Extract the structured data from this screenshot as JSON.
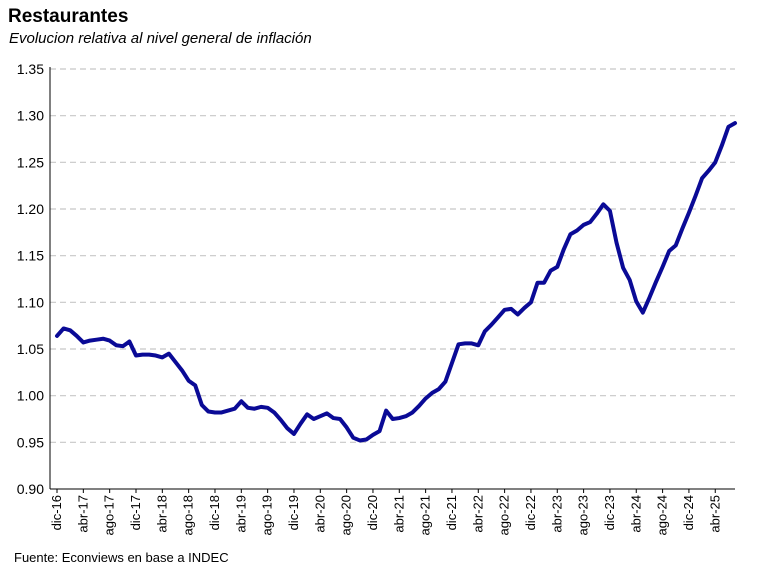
{
  "chart_data": {
    "type": "line",
    "title": "Restaurantes",
    "subtitle": "Evolucion relativa al nivel general de inflación",
    "source": "Fuente: Econviews en base a INDEC",
    "ylim": [
      0.9,
      1.35
    ],
    "yticks": [
      "0.90",
      "0.95",
      "1.00",
      "1.05",
      "1.10",
      "1.15",
      "1.20",
      "1.25",
      "1.30",
      "1.35"
    ],
    "ytick_values": [
      0.9,
      0.95,
      1.0,
      1.05,
      1.1,
      1.15,
      1.2,
      1.25,
      1.3,
      1.35
    ],
    "x_tick_labels": [
      "dic-16",
      "abr-17",
      "ago-17",
      "dic-17",
      "abr-18",
      "ago-18",
      "dic-18",
      "abr-19",
      "ago-19",
      "dic-19",
      "abr-20",
      "ago-20",
      "dic-20",
      "abr-21",
      "ago-21",
      "dic-21",
      "abr-22",
      "ago-22",
      "dic-22",
      "abr-23",
      "ago-23",
      "dic-23",
      "abr-24",
      "ago-24",
      "dic-24",
      "abr-25"
    ],
    "x_start": "dic-16",
    "x_end": "jul-25",
    "grid": true,
    "color": "#0a0a96",
    "series": [
      {
        "values": [
          1.064,
          1.072,
          1.07,
          1.064,
          1.057,
          1.059,
          1.06,
          1.061,
          1.059,
          1.054,
          1.053,
          1.058,
          1.043,
          1.044,
          1.044,
          1.043,
          1.041,
          1.045,
          1.036,
          1.027,
          1.016,
          1.011,
          0.99,
          0.983,
          0.982,
          0.982,
          0.984,
          0.986,
          0.994,
          0.987,
          0.986,
          0.988,
          0.987,
          0.982,
          0.974,
          0.965,
          0.959,
          0.97,
          0.98,
          0.975,
          0.978,
          0.981,
          0.976,
          0.975,
          0.966,
          0.955,
          0.952,
          0.953,
          0.958,
          0.962,
          0.984,
          0.975,
          0.976,
          0.978,
          0.982,
          0.989,
          0.997,
          1.003,
          1.007,
          1.015,
          1.035,
          1.055,
          1.056,
          1.056,
          1.054,
          1.069,
          1.076,
          1.084,
          1.092,
          1.093,
          1.087,
          1.094,
          1.1,
          1.121,
          1.121,
          1.134,
          1.138,
          1.157,
          1.173,
          1.177,
          1.183,
          1.186,
          1.195,
          1.205,
          1.198,
          1.164,
          1.137,
          1.124,
          1.101,
          1.089,
          1.105,
          1.122,
          1.138,
          1.155,
          1.161,
          1.179,
          1.196,
          1.214,
          1.233,
          1.241,
          1.25,
          1.268,
          1.288,
          1.292
        ]
      }
    ]
  }
}
